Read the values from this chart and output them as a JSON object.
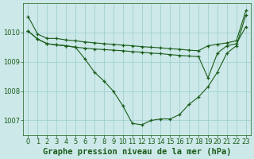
{
  "background_color": "#cce8e8",
  "line_color": "#1a5c1a",
  "grid_color": "#99cccc",
  "title": "Graphe pression niveau de la mer (hPa)",
  "xlim": [
    -0.5,
    23.5
  ],
  "ylim": [
    1006.5,
    1011.0
  ],
  "yticks": [
    1007,
    1008,
    1009,
    1010
  ],
  "xticks": [
    0,
    1,
    2,
    3,
    4,
    5,
    6,
    7,
    8,
    9,
    10,
    11,
    12,
    13,
    14,
    15,
    16,
    17,
    18,
    19,
    20,
    21,
    22,
    23
  ],
  "series": [
    {
      "x": [
        0,
        1,
        2,
        3,
        4,
        5,
        6,
        7,
        8,
        9,
        10,
        11,
        12,
        13,
        14,
        15,
        16,
        17,
        18,
        19,
        20,
        21,
        22,
        23
      ],
      "y": [
        1010.55,
        1009.95,
        1009.8,
        1009.8,
        1009.75,
        1009.72,
        1009.68,
        1009.65,
        1009.62,
        1009.6,
        1009.57,
        1009.55,
        1009.52,
        1009.5,
        1009.48,
        1009.45,
        1009.43,
        1009.4,
        1009.38,
        1009.55,
        1009.6,
        1009.65,
        1009.72,
        1010.75
      ]
    },
    {
      "x": [
        0,
        1,
        2,
        3,
        4,
        5,
        6,
        7,
        8,
        9,
        10,
        11,
        12,
        13,
        14,
        15,
        16,
        17,
        18,
        19,
        20,
        21,
        22,
        23
      ],
      "y": [
        1010.05,
        1009.78,
        1009.62,
        1009.58,
        1009.55,
        1009.5,
        1009.47,
        1009.44,
        1009.42,
        1009.4,
        1009.38,
        1009.35,
        1009.33,
        1009.3,
        1009.28,
        1009.25,
        1009.22,
        1009.2,
        1009.18,
        1008.45,
        1009.3,
        1009.55,
        1009.62,
        1010.2
      ]
    },
    {
      "x": [
        0,
        1,
        2,
        3,
        4,
        5,
        6,
        7,
        8,
        9,
        10,
        11,
        12,
        13,
        14,
        15,
        16,
        17,
        18,
        19,
        20,
        21,
        22,
        23
      ],
      "y": [
        1010.05,
        1009.78,
        1009.62,
        1009.58,
        1009.55,
        1009.5,
        1009.1,
        1008.65,
        1008.35,
        1008.0,
        1007.5,
        1006.9,
        1006.85,
        1007.0,
        1007.05,
        1007.05,
        1007.2,
        1007.55,
        1007.8,
        1008.15,
        1008.65,
        1009.3,
        1009.55,
        1010.6
      ]
    }
  ],
  "title_fontsize": 7.5,
  "tick_fontsize": 6,
  "figsize": [
    3.2,
    2.0
  ],
  "dpi": 100
}
